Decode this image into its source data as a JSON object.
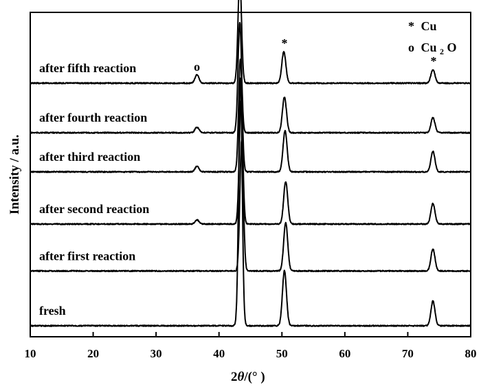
{
  "chart_data": {
    "type": "line",
    "xlabel_prefix": "2",
    "xlabel_theta": "θ",
    "xlabel_suffix": "/(°  )",
    "ylabel": "Intensity / a.u.",
    "xlim": [
      10,
      80
    ],
    "xticks": [
      "10",
      "20",
      "30",
      "40",
      "50",
      "60",
      "70",
      "80"
    ],
    "xtick_values": [
      10,
      20,
      30,
      40,
      50,
      60,
      70,
      80
    ],
    "legend": {
      "placement": "top-right",
      "entries": [
        {
          "symbol": "*",
          "text": "Cu",
          "sub": ""
        },
        {
          "symbol": "o",
          "text": "Cu",
          "sub": "2",
          "after": "O"
        }
      ]
    },
    "markers": [
      {
        "symbol": "*",
        "x": 43.3
      },
      {
        "symbol": "*",
        "x": 50.4
      },
      {
        "symbol": "o",
        "x": 36.5
      },
      {
        "symbol": "*",
        "x": 74.1
      }
    ],
    "series": [
      {
        "name": "after fifth reaction",
        "baseline": 0.93,
        "peaks": [
          {
            "x": 36.5,
            "h": 0.6
          },
          {
            "x": 43.3,
            "h": 7.6
          },
          {
            "x": 50.3,
            "h": 2.3
          },
          {
            "x": 74.0,
            "h": 1.0
          }
        ]
      },
      {
        "name": "after fourth reaction",
        "baseline": 0.74,
        "peaks": [
          {
            "x": 36.5,
            "h": 0.4
          },
          {
            "x": 43.3,
            "h": 8.0
          },
          {
            "x": 50.4,
            "h": 2.6
          },
          {
            "x": 74.0,
            "h": 1.1
          }
        ]
      },
      {
        "name": "after third reaction",
        "baseline": 0.59,
        "peaks": [
          {
            "x": 36.5,
            "h": 0.4
          },
          {
            "x": 43.4,
            "h": 8.2
          },
          {
            "x": 50.5,
            "h": 3.0
          },
          {
            "x": 74.0,
            "h": 1.5
          }
        ]
      },
      {
        "name": "after second reaction",
        "baseline": 0.39,
        "peaks": [
          {
            "x": 36.5,
            "h": 0.3
          },
          {
            "x": 43.5,
            "h": 9.0
          },
          {
            "x": 50.6,
            "h": 3.1
          },
          {
            "x": 74.0,
            "h": 1.5
          }
        ]
      },
      {
        "name": "after first reaction",
        "baseline": 0.21,
        "peaks": [
          {
            "x": 43.6,
            "h": 9.5
          },
          {
            "x": 50.6,
            "h": 3.5
          },
          {
            "x": 74.0,
            "h": 1.6
          }
        ]
      },
      {
        "name": "fresh",
        "baseline": 0.0,
        "peaks": [
          {
            "x": 43.4,
            "h": 18.0
          },
          {
            "x": 50.4,
            "h": 4.0
          },
          {
            "x": 74.0,
            "h": 1.8
          }
        ]
      }
    ]
  }
}
